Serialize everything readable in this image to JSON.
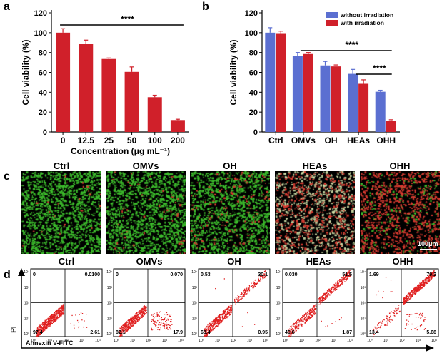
{
  "panel_labels": [
    "a",
    "b",
    "c",
    "d"
  ],
  "colors": {
    "red": "#d0202a",
    "blue": "#5b6fd1",
    "cell_green": "#3cba2c",
    "cell_red": "#d63a30"
  },
  "chart_data": [
    {
      "panel": "a",
      "type": "bar",
      "categories": [
        "0",
        "12.5",
        "25",
        "50",
        "100",
        "200"
      ],
      "series": [
        {
          "values": [
            100,
            89,
            73.5,
            60.5,
            35,
            12
          ],
          "errors": [
            4,
            3.5,
            1,
            5,
            2,
            0.8
          ],
          "color": "#d0202a"
        }
      ],
      "xlabel": "Concentration (μg mL⁻¹)",
      "ylabel": "Cell viability (%)",
      "ylim": [
        0,
        120
      ],
      "yticks": [
        "0",
        "20",
        "40",
        "60",
        "80",
        "100",
        "120"
      ],
      "significance": [
        {
          "label": "****",
          "from": "0",
          "to": "200"
        }
      ]
    },
    {
      "panel": "b",
      "type": "bar",
      "categories": [
        "Ctrl",
        "OMVs",
        "OH",
        "HEAs",
        "OHH"
      ],
      "series": [
        {
          "name": "without irradiation",
          "values": [
            100,
            76.5,
            67,
            58.5,
            40.5
          ],
          "errors": [
            5,
            3.5,
            4,
            4.5,
            1.5
          ],
          "color": "#5b6fd1"
        },
        {
          "name": "with irradiation",
          "values": [
            99.5,
            78.5,
            66,
            48.5,
            11.5
          ],
          "errors": [
            2,
            1.5,
            1.5,
            4,
            0.8
          ],
          "color": "#d0202a"
        }
      ],
      "ylabel": "Cell viability (%)",
      "ylim": [
        0,
        120
      ],
      "yticks": [
        "0",
        "20",
        "40",
        "60",
        "80",
        "100",
        "120"
      ],
      "legend_position": "top-right",
      "significance": [
        {
          "label": "****",
          "from": "OMVs",
          "to": "OHH"
        },
        {
          "label": "****",
          "from": "HEAs",
          "to": "OHH"
        }
      ]
    }
  ],
  "micrographs": {
    "titles": [
      "Ctrl",
      "OMVs",
      "OH",
      "HEAs",
      "OHH"
    ],
    "red_fraction": [
      0.01,
      0.03,
      0.12,
      0.5,
      0.9
    ],
    "scale_bar": "100μm"
  },
  "flow": {
    "titles": [
      "Ctrl",
      "OMVs",
      "OH",
      "HEAs",
      "OHH"
    ],
    "xlabel": "Annexin V-FITC",
    "ylabel": "PI",
    "tick_labels": [
      "10⁰",
      "10¹",
      "10²",
      "10³",
      "10⁴"
    ],
    "quadrants": [
      {
        "ul": "0",
        "ur": "0.0100",
        "ll": "97.4",
        "lr": "2.61"
      },
      {
        "ul": "0",
        "ur": "0.070",
        "ll": "82.1",
        "lr": "17.9"
      },
      {
        "ul": "0.53",
        "ur": "30.1",
        "ll": "68.4",
        "lr": "0.95"
      },
      {
        "ul": "0.030",
        "ur": "51.5",
        "ll": "46.6",
        "lr": "1.87"
      },
      {
        "ul": "1.69",
        "ur": "79.2",
        "ll": "13.4",
        "lr": "5.68"
      }
    ]
  }
}
